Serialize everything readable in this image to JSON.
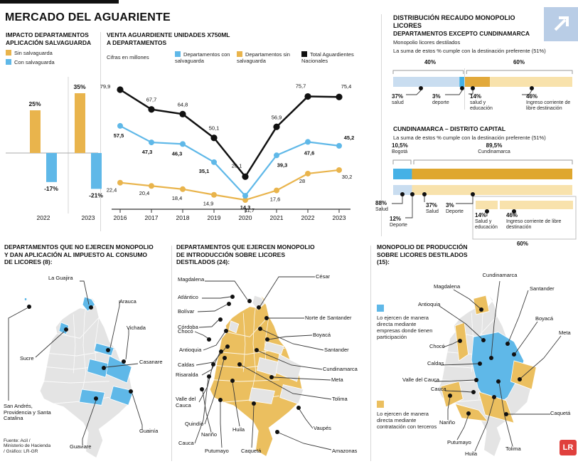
{
  "header": {
    "title": "MERCADO DEL AGUARIENTE"
  },
  "distribution_header": {
    "title": "DISTRIBUCIÓN RECAUDO MONOPOLIO LICORES"
  },
  "source": {
    "line1": "Fuente: Acil /",
    "line2": "Ministerio de Hacienda",
    "line3": "/ Gráfico: LR-GR"
  },
  "logo": {
    "text": "LR"
  },
  "colors": {
    "yellow": "#E9B44C",
    "blue": "#5FB8E8",
    "black": "#111111",
    "pale_blue": "#C9DDF0",
    "bright_blue": "#45B1E6",
    "gold": "#E2A93B",
    "dark_gold": "#DFA72E",
    "pale_yellow": "#F8E2AC",
    "map_gray": "#E4E4E4",
    "map_yellow": "#EBBF5F",
    "map_blue": "#5FB8E8",
    "expand_box": "#B9CDE6",
    "lr_red": "#E0403D"
  },
  "chart_data": [
    {
      "id": "impacto_salvaguarda",
      "type": "bar",
      "title": "IMPACTO DEPARTAMENTOS APLICACIÓN SALVAGUARDA",
      "categories": [
        "2022",
        "2023"
      ],
      "series": [
        {
          "name": "Sin salvaguarda",
          "color": "#E9B44C",
          "values": [
            25,
            35
          ],
          "labels": [
            "25%",
            "35%"
          ]
        },
        {
          "name": "Con salvaguarda",
          "color": "#5FB8E8",
          "values": [
            -17,
            -21
          ],
          "labels": [
            "-17%",
            "-21%"
          ]
        }
      ],
      "ylim": [
        -25,
        40
      ],
      "unit": "%"
    },
    {
      "id": "venta_aguardiente",
      "type": "line",
      "title": "VENTA AGUARDIENTE UNIDADES X750ML A DEPARTAMENTOS",
      "subtitle": "Cifras en millones",
      "x": [
        2016,
        2017,
        2018,
        2019,
        2020,
        2021,
        2022,
        2023
      ],
      "x_labels": [
        "2016",
        "2017",
        "2018",
        "2019",
        "2020",
        "2021",
        "2022",
        "2023"
      ],
      "series": [
        {
          "name": "Departamentos con salvaguarda",
          "color": "#5FB8E8",
          "values": [
            57.5,
            47.3,
            46.3,
            35.1,
            14.3,
            39.3,
            47.6,
            45.2
          ],
          "labels": [
            "57,5",
            "47,3",
            "46,3",
            "35,1",
            "14,3",
            "39,3",
            "47,6",
            "45,2"
          ]
        },
        {
          "name": "Departamentos sin salvaguarda",
          "color": "#E9B44C",
          "values": [
            22.4,
            20.4,
            18.4,
            14.9,
            11.7,
            17.6,
            28,
            30.2
          ],
          "labels": [
            "22,4",
            "20,4",
            "18,4",
            "14,9",
            "11,7",
            "17,6",
            "28",
            "30,2"
          ]
        },
        {
          "name": "Total Aguardientes Nacionales",
          "color": "#111111",
          "values": [
            79.9,
            67.7,
            64.8,
            50.1,
            26.1,
            56.9,
            75.7,
            75.4
          ],
          "labels": [
            "79,9",
            "67,7",
            "64,8",
            "50,1",
            "26,1",
            "56,9",
            "75,7",
            "75,4"
          ]
        }
      ],
      "ylim": [
        0,
        90
      ]
    },
    {
      "id": "recaudo_excepto_cundinamarca",
      "type": "stacked-bar",
      "title": "DEPARTAMENTOS EXCEPTO CUNDINAMARCA",
      "note": "Monopolio licores destilados",
      "subtitle": "La suma de estos % cumple con la destinación preferente (51%)",
      "brackets": [
        {
          "label": "40%",
          "span": 40
        },
        {
          "label": "60%",
          "span": 60
        }
      ],
      "segments": [
        {
          "value": 37,
          "label": "37%",
          "sublabel": "salud",
          "color": "#C9DDF0"
        },
        {
          "value": 3,
          "label": "3%",
          "sublabel": "deporte",
          "color": "#45B1E6"
        },
        {
          "value": 14,
          "label": "14%",
          "sublabel": "salud y educación",
          "color": "#E2A93B"
        },
        {
          "value": 46,
          "label": "46%",
          "sublabel": "Ingreso corriente de libre destinación",
          "color": "#F8E2AC"
        }
      ]
    },
    {
      "id": "recaudo_cundinamarca",
      "type": "stacked-bar",
      "title": "CUNDINAMARCA – DISTRITO CAPITAL",
      "subtitle": "La suma de estos % cumple con la destinación preferente (51%)",
      "brackets": [
        {
          "label": "10,5%",
          "sublabel": "Bogotá",
          "span": 10.5
        },
        {
          "label": "89,5%",
          "sublabel": "Cundinamarca",
          "span": 89.5
        }
      ],
      "bar1": [
        {
          "value": 10.5,
          "color": "#45B1E6"
        },
        {
          "value": 89.5,
          "color": "#DFA72E"
        }
      ],
      "bar2": [
        {
          "value": 10.5,
          "color": "#C9DDF0"
        },
        {
          "value": 89.5,
          "color": "#F8E2AC"
        }
      ],
      "bar2_labels": [
        {
          "label": "88%",
          "sublabel": "Salud"
        },
        {
          "label": "12%",
          "sublabel": "Deporte"
        },
        {
          "label": "37%",
          "sublabel": "Salud"
        },
        {
          "label": "3%",
          "sublabel": "Deporte"
        }
      ],
      "subbar": [
        {
          "label": "14%",
          "sublabel": "Salud y educación"
        },
        {
          "label": "46%",
          "sublabel": "Ingreso corriente de libre destinación"
        }
      ],
      "subbar_total": "60%"
    }
  ],
  "maps": {
    "no_monopoly": {
      "title": "DEPARTAMENTOS QUE NO EJERCEN MONOPOLIO Y DAN APLICACIÓN AL IMPUESTO AL CONSUMO DE LICORES (8):",
      "labels": [
        "La Guajira",
        "Arauca",
        "Vichada",
        "Sucre",
        "Casanare",
        "San Andrés, Providencia y Santa Catalina",
        "Guainía",
        "Guaviare"
      ]
    },
    "introduction_monopoly": {
      "title": "DEPARTAMENTOS QUE EJERCEN MONOPOLIO DE INTRODUCCIÓN SOBRE LICORES DESTILADOS (24):",
      "labels_left": [
        "Magdalena",
        "Atlántico",
        "Bolívar",
        "Córdoba",
        "Chocó",
        "Antioquia",
        "Caldas",
        "Risaralda",
        "Valle del Cauca",
        "Quindío",
        "Nariño",
        "Cauca",
        "Putumayo",
        "Huila",
        "Caquetá"
      ],
      "labels_right": [
        "César",
        "Norte de Santander",
        "Boyacá",
        "Santander",
        "Cundinamarca",
        "Meta",
        "Tolima",
        "Vaupés",
        "Amazonas"
      ]
    },
    "production_monopoly": {
      "title": "MONOPOLIO DE PRODUCCIÓN SOBRE LICORES DESTILADOS (15):",
      "legend_blue": "Lo ejercen de manera directa mediante empresas donde tienen participación",
      "legend_yellow": "Lo ejercen de manera directa mediante contratación con terceros",
      "labels": [
        "Cundinamarca",
        "Magdalena",
        "Santander",
        "Antioquia",
        "Boyacá",
        "Meta",
        "Chocó",
        "Caldas",
        "Valle del Cauca",
        "Cauca",
        "Nariño",
        "Putumayo",
        "Huila",
        "Tolima",
        "Caquetá"
      ]
    }
  }
}
